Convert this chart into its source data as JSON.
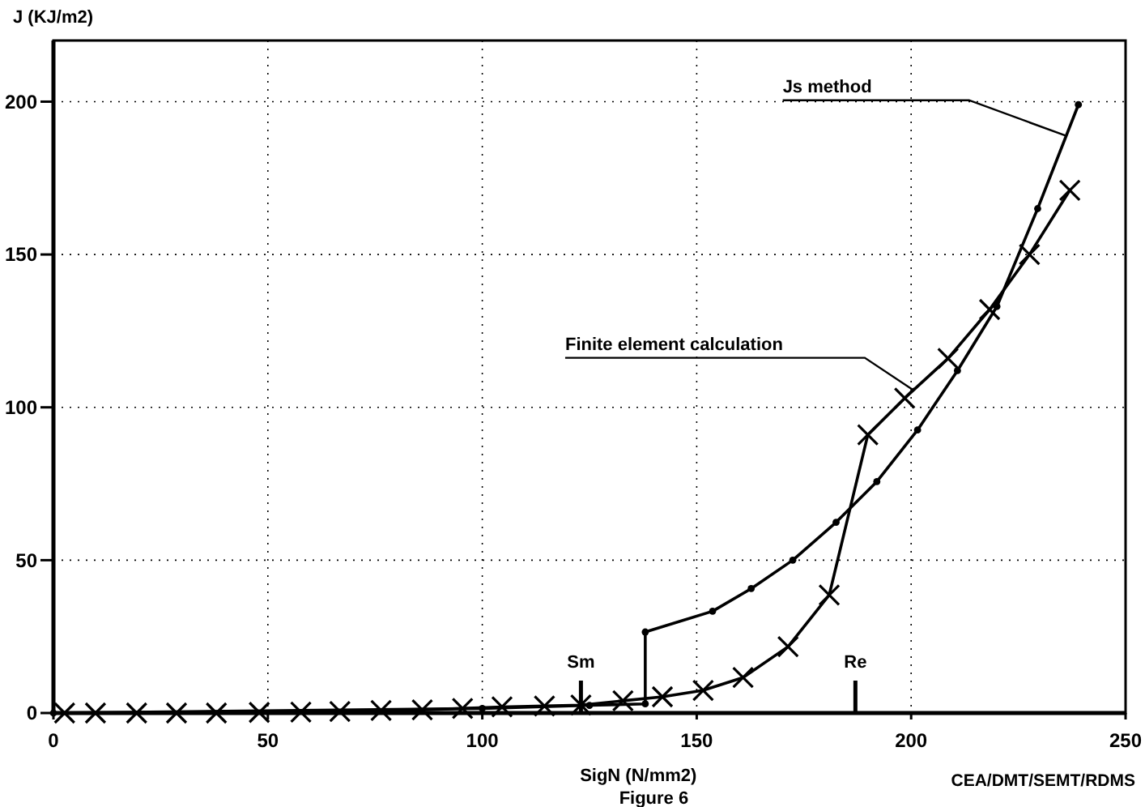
{
  "chart_data": {
    "type": "line",
    "ylabel": "J (KJ/m2)",
    "xlabel": "SigN (N/mm2)",
    "annotations": [
      "Figure 6",
      "CEA/DMT/SEMT/RDMS"
    ],
    "xlim": [
      0,
      250
    ],
    "xticks": [
      0,
      50,
      100,
      150,
      200,
      250
    ],
    "ylim": [
      0,
      220
    ],
    "yticks": [
      0,
      50,
      100,
      150,
      200
    ],
    "grid": true,
    "legend": false,
    "line_style": "solid",
    "ref_lines": [
      {
        "axis": "x",
        "value": 123,
        "label": "Sm"
      },
      {
        "axis": "x",
        "value": 187,
        "label": "Re"
      }
    ],
    "series": [
      {
        "name": "Js method",
        "color": "#000000",
        "marker": "circle",
        "x": [
          0,
          50,
          100,
          125,
          138,
          138,
          153.7,
          162.7,
          172.4,
          182.5,
          192,
          201.5,
          210.8,
          220,
          229.5,
          239
        ],
        "values": [
          0,
          null,
          1.5,
          2.5,
          3,
          26.5,
          33.3,
          40.7,
          50,
          62.4,
          75.7,
          92.6,
          112,
          133,
          165,
          199
        ]
      },
      {
        "name": "Finite element calculation",
        "color": "#000000",
        "marker": "cross",
        "x": [
          2.6,
          9.8,
          19.4,
          28.7,
          38,
          48,
          57.7,
          66.8,
          76.4,
          86,
          95.4,
          104.6,
          114.5,
          123,
          132.8,
          142,
          151.5,
          160.8,
          171.3,
          180.9,
          189.9,
          198.5,
          208.6,
          218.3,
          227.6,
          237
        ],
        "values": [
          0,
          0,
          0,
          0,
          0,
          0.2,
          0.3,
          0.5,
          0.8,
          1,
          1.5,
          2,
          2.3,
          2.6,
          4,
          5.3,
          7.4,
          11.6,
          21.7,
          38.6,
          91,
          103,
          116,
          132,
          150,
          171
        ]
      }
    ]
  }
}
